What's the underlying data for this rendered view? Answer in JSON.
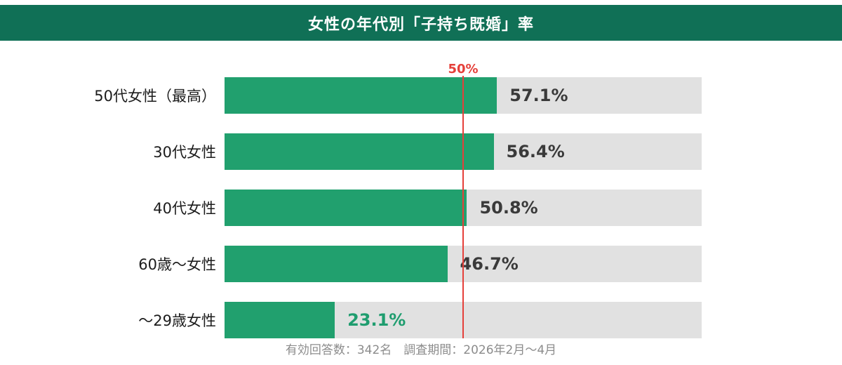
{
  "header": {
    "title": "女性の年代別「子持ち既婚」率",
    "bg_color": "#107056",
    "text_color": "#ffffff"
  },
  "chart_data": {
    "type": "bar",
    "orientation": "horizontal",
    "title": "女性の年代別「子持ち既婚」率",
    "categories": [
      "50代女性（最高）",
      "30代女性",
      "40代女性",
      "60歳〜女性",
      "～29歳女性"
    ],
    "values": [
      57.1,
      56.4,
      50.8,
      46.7,
      23.1
    ],
    "value_labels": [
      "57.1%",
      "56.4%",
      "50.8%",
      "46.7%",
      "23.1%"
    ],
    "value_label_colors": [
      "#3a3a3a",
      "#3a3a3a",
      "#3a3a3a",
      "#3a3a3a",
      "#1f9d6f"
    ],
    "xlim": [
      0,
      100
    ],
    "bar_color": "#21a06e",
    "track_color": "#e1e1e1",
    "grid": false,
    "legend": false,
    "reference_line": {
      "value": 50,
      "label": "50%",
      "color": "#e5403a"
    }
  },
  "footer": {
    "note": "有効回答数：342名　調査期間：2026年2月〜4月"
  }
}
